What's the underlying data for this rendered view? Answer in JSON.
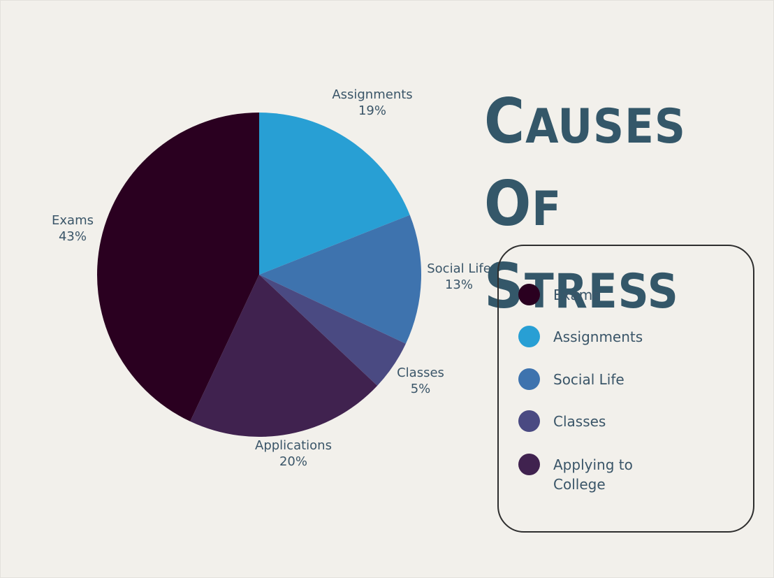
{
  "title": "Causes of Stress",
  "chart_data": {
    "type": "pie",
    "title": "Causes of Stress",
    "slices": [
      {
        "label": "Assignments",
        "pct_label": "19%",
        "value": 19,
        "color": "#289fd4"
      },
      {
        "label": "Social Life",
        "pct_label": "13%",
        "value": 13,
        "color": "#3e73ae"
      },
      {
        "label": "Classes",
        "pct_label": "5%",
        "value": 5,
        "color": "#4a4a82"
      },
      {
        "label": "Applications",
        "pct_label": "20%",
        "value": 20,
        "color": "#40224f"
      },
      {
        "label": "Exams",
        "pct_label": "43%",
        "value": 43,
        "color": "#2a0020"
      }
    ],
    "legend": [
      {
        "label": "Exams",
        "color": "#2a0020"
      },
      {
        "label": "Assignments",
        "color": "#289fd4"
      },
      {
        "label": "Social Life",
        "color": "#3e73ae"
      },
      {
        "label": "Classes",
        "color": "#4a4a82"
      },
      {
        "label": "Applying to College",
        "color": "#40224f"
      }
    ],
    "legend_position": "right"
  }
}
